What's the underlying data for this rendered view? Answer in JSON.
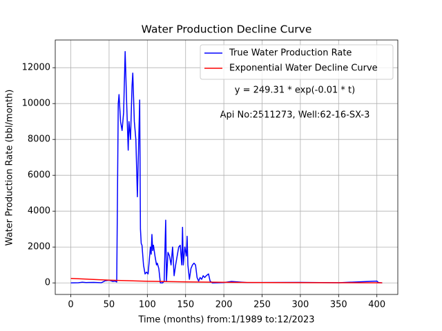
{
  "chart_data": {
    "type": "line",
    "title": "Water Production Decline Curve",
    "xlabel": "Time (months) from:1/1989 to:12/2023",
    "ylabel": "Water Production Rate (bbl/month)",
    "annotations": [
      "y = 249.31 * exp(-0.01 * t)",
      "Api No:2511273, Well:62-16-SX-3"
    ],
    "xlim": [
      -20.35,
      427.35
    ],
    "ylim": [
      -645,
      13545
    ],
    "xticks": [
      0,
      50,
      100,
      150,
      200,
      250,
      300,
      350,
      400
    ],
    "yticks": [
      0,
      2000,
      4000,
      6000,
      8000,
      10000,
      12000
    ],
    "grid": true,
    "legend": "upper right",
    "series": [
      {
        "name": "True Water Production Rate",
        "color": "#0000ff",
        "x": [
          0,
          10,
          15,
          20,
          30,
          40,
          45,
          50,
          55,
          58,
          60,
          62,
          63,
          65,
          67,
          69,
          71,
          73,
          75,
          76,
          78,
          80,
          81,
          83,
          85,
          87,
          90,
          91,
          92,
          93,
          95,
          97,
          99,
          101,
          103,
          104,
          105,
          106,
          107,
          108,
          110,
          112,
          113,
          115,
          117,
          120,
          122,
          124,
          125,
          127,
          129,
          131,
          133,
          135,
          137,
          139,
          141,
          143,
          145,
          146,
          147,
          149,
          151,
          152,
          153,
          155,
          157,
          159,
          161,
          163,
          165,
          167,
          169,
          171,
          173,
          175,
          177,
          180,
          182,
          185,
          200,
          210,
          230,
          300,
          350,
          400,
          402,
          407
        ],
        "values": [
          0,
          10,
          40,
          20,
          30,
          10,
          120,
          150,
          80,
          100,
          50,
          10000,
          10500,
          9000,
          8500,
          9500,
          12900,
          10000,
          7400,
          9000,
          8000,
          11000,
          11700,
          9000,
          8000,
          4800,
          10200,
          3000,
          2200,
          2100,
          1000,
          500,
          600,
          500,
          1500,
          2000,
          1600,
          2700,
          1800,
          2100,
          1500,
          1000,
          1100,
          800,
          0,
          0,
          100,
          3500,
          100,
          1700,
          1500,
          1000,
          2000,
          400,
          1000,
          1500,
          2000,
          2100,
          1000,
          3100,
          1000,
          2000,
          1500,
          2600,
          1000,
          200,
          800,
          1000,
          1100,
          1000,
          300,
          100,
          300,
          200,
          400,
          300,
          400,
          500,
          100,
          0,
          20,
          80,
          20,
          30,
          10,
          100,
          20,
          0
        ]
      },
      {
        "name": "Exponential Water Decline Curve",
        "color": "#ff0000",
        "x": [
          0,
          50,
          100,
          150,
          200,
          250,
          300,
          350,
          407
        ],
        "values": [
          249.3,
          151.2,
          91.7,
          55.6,
          33.7,
          20.5,
          12.4,
          7.5,
          4.2
        ]
      }
    ]
  }
}
